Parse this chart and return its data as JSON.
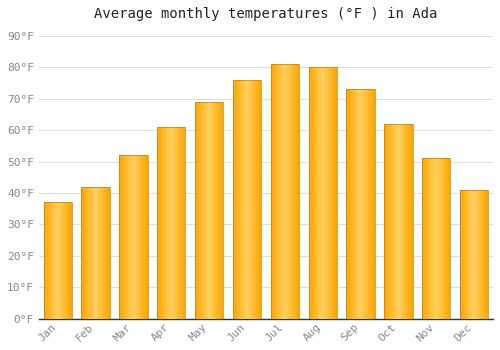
{
  "title": "Average monthly temperatures (°F ) in Ada",
  "months": [
    "Jan",
    "Feb",
    "Mar",
    "Apr",
    "May",
    "Jun",
    "Jul",
    "Aug",
    "Sep",
    "Oct",
    "Nov",
    "Dec"
  ],
  "values": [
    37,
    42,
    52,
    61,
    69,
    76,
    81,
    80,
    73,
    62,
    51,
    41
  ],
  "bar_edge_color": "#FFA500",
  "bar_center_color": "#FFD060",
  "bar_border_color": "#C8A060",
  "background_color": "#FFFFFF",
  "plot_bg_color": "#FFFFFF",
  "grid_color": "#DDDDDD",
  "ylabel_ticks": [
    0,
    10,
    20,
    30,
    40,
    50,
    60,
    70,
    80,
    90
  ],
  "ylim": [
    0,
    93
  ],
  "title_fontsize": 10,
  "tick_fontsize": 8,
  "tick_color": "#888888",
  "bar_width": 0.75
}
